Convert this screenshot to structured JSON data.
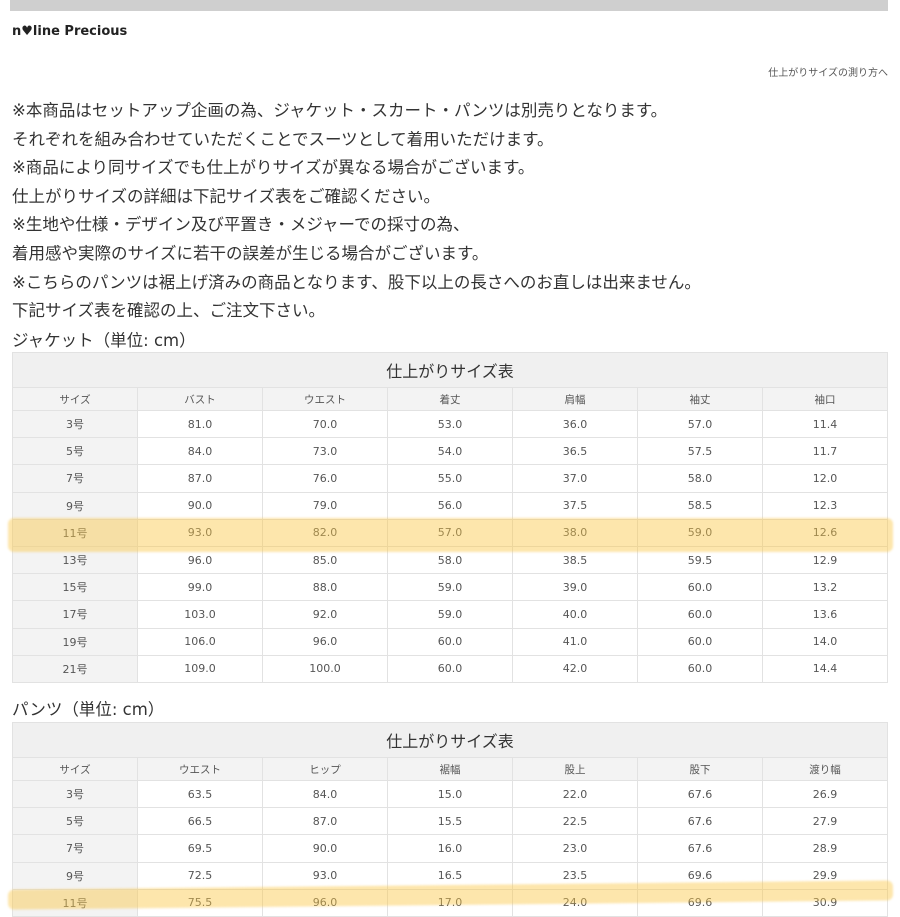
{
  "brand": "n♥line Precious",
  "link": "仕上がりサイズの測り方へ",
  "notes": [
    "※本商品はセットアップ企画の為、ジャケット・スカート・パンツは別売りとなります。",
    "それぞれを組み合わせていただくことでスーツとして着用いただけます。",
    "※商品により同サイズでも仕上がりサイズが異なる場合がございます。",
    "仕上がりサイズの詳細は下記サイズ表をご確認ください。",
    "※生地や仕様・デザイン及び平置き・メジャーでの採寸の為、",
    "着用感や実際のサイズに若干の誤差が生じる場合がございます。",
    "※こちらのパンツは裾上げ済みの商品となります、股下以上の長さへのお直しは出来ません。",
    "下記サイズ表を確認の上、ご注文下さい。"
  ],
  "highlight_color": "#f9c846",
  "tables": [
    {
      "label": "ジャケット（単位: cm）",
      "title": "仕上がりサイズ表",
      "headers": [
        "サイズ",
        "バスト",
        "ウエスト",
        "着丈",
        "肩幅",
        "袖丈",
        "袖口"
      ],
      "rows": [
        [
          "3号",
          "81.0",
          "70.0",
          "53.0",
          "36.0",
          "57.0",
          "11.4"
        ],
        [
          "5号",
          "84.0",
          "73.0",
          "54.0",
          "36.5",
          "57.5",
          "11.7"
        ],
        [
          "7号",
          "87.0",
          "76.0",
          "55.0",
          "37.0",
          "58.0",
          "12.0"
        ],
        [
          "9号",
          "90.0",
          "79.0",
          "56.0",
          "37.5",
          "58.5",
          "12.3"
        ],
        [
          "11号",
          "93.0",
          "82.0",
          "57.0",
          "38.0",
          "59.0",
          "12.6"
        ],
        [
          "13号",
          "96.0",
          "85.0",
          "58.0",
          "38.5",
          "59.5",
          "12.9"
        ],
        [
          "15号",
          "99.0",
          "88.0",
          "59.0",
          "39.0",
          "60.0",
          "13.2"
        ],
        [
          "17号",
          "103.0",
          "92.0",
          "59.0",
          "40.0",
          "60.0",
          "13.6"
        ],
        [
          "19号",
          "106.0",
          "96.0",
          "60.0",
          "41.0",
          "60.0",
          "14.0"
        ],
        [
          "21号",
          "109.0",
          "100.0",
          "60.0",
          "42.0",
          "60.0",
          "14.4"
        ]
      ]
    },
    {
      "label": "パンツ（単位: cm）",
      "title": "仕上がりサイズ表",
      "headers": [
        "サイズ",
        "ウエスト",
        "ヒップ",
        "裾幅",
        "股上",
        "股下",
        "渡り幅"
      ],
      "rows": [
        [
          "3号",
          "63.5",
          "84.0",
          "15.0",
          "22.0",
          "67.6",
          "26.9"
        ],
        [
          "5号",
          "66.5",
          "87.0",
          "15.5",
          "22.5",
          "67.6",
          "27.9"
        ],
        [
          "7号",
          "69.5",
          "90.0",
          "16.0",
          "23.0",
          "67.6",
          "28.9"
        ],
        [
          "9号",
          "72.5",
          "93.0",
          "16.5",
          "23.5",
          "69.6",
          "29.9"
        ],
        [
          "11号",
          "75.5",
          "96.0",
          "17.0",
          "24.0",
          "69.6",
          "30.9"
        ]
      ]
    }
  ]
}
